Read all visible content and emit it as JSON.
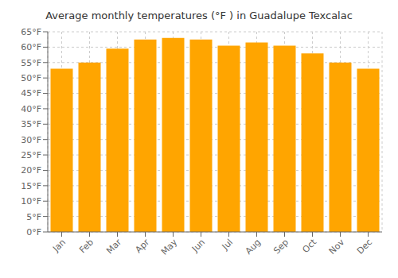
{
  "chart_data": {
    "type": "bar",
    "title": "Average monthly temperatures (°F ) in Guadalupe Texcalac",
    "categories": [
      "Jan",
      "Feb",
      "Mar",
      "Apr",
      "May",
      "Jun",
      "Jul",
      "Aug",
      "Sep",
      "Oct",
      "Nov",
      "Dec"
    ],
    "values": [
      53,
      55,
      59.5,
      62.5,
      63,
      62.5,
      60.5,
      61.5,
      60.5,
      58,
      55,
      53
    ],
    "color": "#FFA500",
    "ylim": [
      0,
      65
    ],
    "yticks": [
      {
        "value": 0,
        "label": "0°F"
      },
      {
        "value": 5,
        "label": "5°F"
      },
      {
        "value": 10,
        "label": "10°F"
      },
      {
        "value": 15,
        "label": "15°F"
      },
      {
        "value": 20,
        "label": "20°F"
      },
      {
        "value": 25,
        "label": "25°F"
      },
      {
        "value": 30,
        "label": "30°F"
      },
      {
        "value": 35,
        "label": "35°F"
      },
      {
        "value": 40,
        "label": "40°F"
      },
      {
        "value": 45,
        "label": "45°F"
      },
      {
        "value": 50,
        "label": "50°F"
      },
      {
        "value": 55,
        "label": "55°F"
      },
      {
        "value": 60,
        "label": "60°F"
      },
      {
        "value": 65,
        "label": "65°F"
      }
    ],
    "grid": true
  }
}
